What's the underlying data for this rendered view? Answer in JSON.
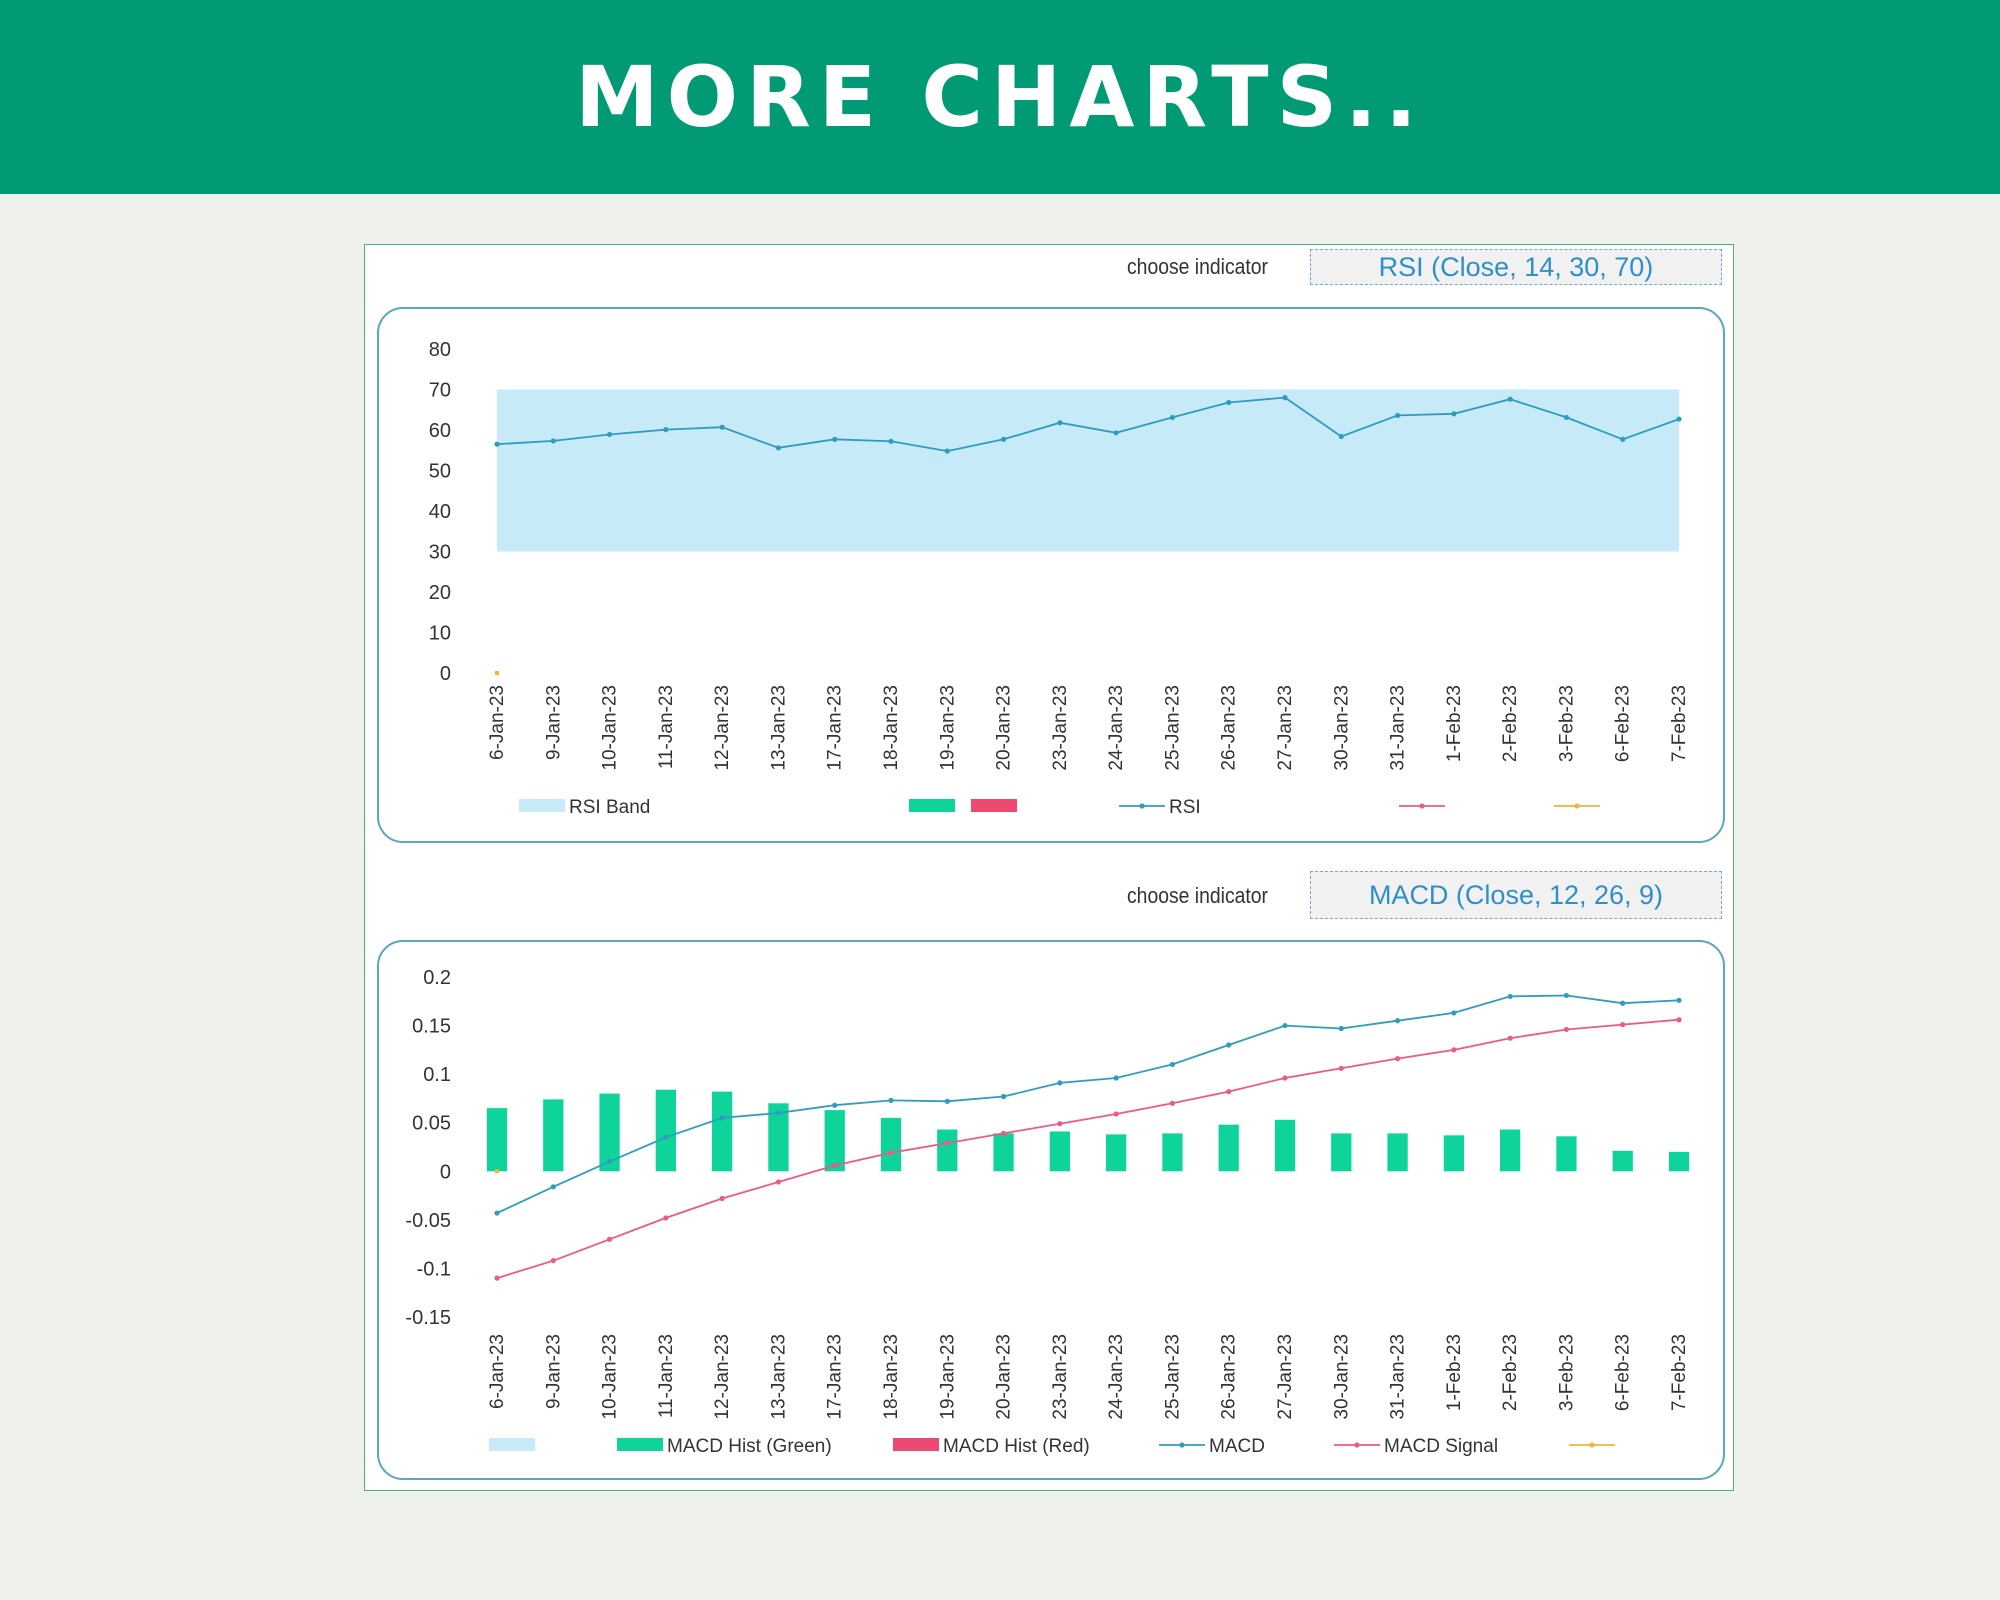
{
  "banner": {
    "title": "MORE CHARTS.."
  },
  "colors": {
    "banner": "#009a74",
    "rsi_band": "#c6eaf7",
    "hist_green": "#0ed49b",
    "hist_red": "#ec4a70",
    "macd_line": "#2f9cc0",
    "signal_line": "#ec5a86",
    "extra_line": "#f0b43a"
  },
  "indicator1": {
    "label": "choose indicator",
    "value": "RSI (Close, 14, 30, 70)"
  },
  "indicator2": {
    "label": "choose indicator",
    "value": "MACD (Close, 12, 26, 9)"
  },
  "chart_data": [
    {
      "type": "line",
      "categories": [
        "6-Jan-23",
        "9-Jan-23",
        "10-Jan-23",
        "11-Jan-23",
        "12-Jan-23",
        "13-Jan-23",
        "17-Jan-23",
        "18-Jan-23",
        "19-Jan-23",
        "20-Jan-23",
        "23-Jan-23",
        "24-Jan-23",
        "25-Jan-23",
        "26-Jan-23",
        "27-Jan-23",
        "30-Jan-23",
        "31-Jan-23",
        "1-Feb-23",
        "2-Feb-23",
        "3-Feb-23",
        "6-Feb-23",
        "7-Feb-23"
      ],
      "ylim": [
        0,
        80
      ],
      "yticks": [
        "0",
        "10",
        "20",
        "30",
        "40",
        "50",
        "60",
        "70",
        "80"
      ],
      "band": {
        "name": "RSI Band",
        "lower": 30,
        "upper": 70
      },
      "series": [
        {
          "name": "RSI",
          "values": [
            56.5,
            57.3,
            58.9,
            60.1,
            60.7,
            55.6,
            57.7,
            57.2,
            54.8,
            57.7,
            61.8,
            59.3,
            63.1,
            66.8,
            68.0,
            58.4,
            63.6,
            64.0,
            67.6,
            63.1,
            57.7,
            62.7
          ]
        }
      ],
      "extra_point": {
        "category": "6-Jan-23",
        "value": 0
      },
      "legend": {
        "band": "RSI Band",
        "hist_green": "",
        "hist_red": "",
        "line1": "RSI",
        "line2": "",
        "line3": ""
      },
      "grid": false,
      "legend_position": "bottom"
    },
    {
      "type": "bar+line",
      "categories": [
        "6-Jan-23",
        "9-Jan-23",
        "10-Jan-23",
        "11-Jan-23",
        "12-Jan-23",
        "13-Jan-23",
        "17-Jan-23",
        "18-Jan-23",
        "19-Jan-23",
        "20-Jan-23",
        "23-Jan-23",
        "24-Jan-23",
        "25-Jan-23",
        "26-Jan-23",
        "27-Jan-23",
        "30-Jan-23",
        "31-Jan-23",
        "1-Feb-23",
        "2-Feb-23",
        "3-Feb-23",
        "6-Feb-23",
        "7-Feb-23"
      ],
      "ylim": [
        -0.15,
        0.2
      ],
      "yticks": [
        "-0.15",
        "-0.1",
        "-0.05",
        "0",
        "0.05",
        "0.1",
        "0.15",
        "0.2"
      ],
      "histogram": {
        "name": "MACD Hist (Green)",
        "values": [
          0.065,
          0.074,
          0.08,
          0.084,
          0.082,
          0.07,
          0.063,
          0.055,
          0.043,
          0.039,
          0.041,
          0.038,
          0.039,
          0.048,
          0.053,
          0.039,
          0.039,
          0.037,
          0.043,
          0.036,
          0.021,
          0.02
        ]
      },
      "series": [
        {
          "name": "MACD",
          "values": [
            -0.043,
            -0.016,
            0.01,
            0.035,
            0.055,
            0.06,
            0.068,
            0.073,
            0.072,
            0.077,
            0.091,
            0.096,
            0.11,
            0.13,
            0.15,
            0.147,
            0.155,
            0.163,
            0.18,
            0.181,
            0.173,
            0.176
          ]
        },
        {
          "name": "MACD Signal",
          "values": [
            -0.11,
            -0.092,
            -0.07,
            -0.048,
            -0.028,
            -0.011,
            0.006,
            0.019,
            0.029,
            0.039,
            0.049,
            0.059,
            0.07,
            0.082,
            0.096,
            0.106,
            0.116,
            0.125,
            0.137,
            0.146,
            0.151,
            0.156
          ]
        }
      ],
      "extra_point": {
        "category": "6-Jan-23",
        "value": 0
      },
      "legend": {
        "band": "",
        "hist_green": "MACD Hist (Green)",
        "hist_red": "MACD Hist (Red)",
        "line1": "MACD",
        "line2": "MACD Signal",
        "line3": ""
      },
      "grid": false,
      "legend_position": "bottom"
    }
  ]
}
